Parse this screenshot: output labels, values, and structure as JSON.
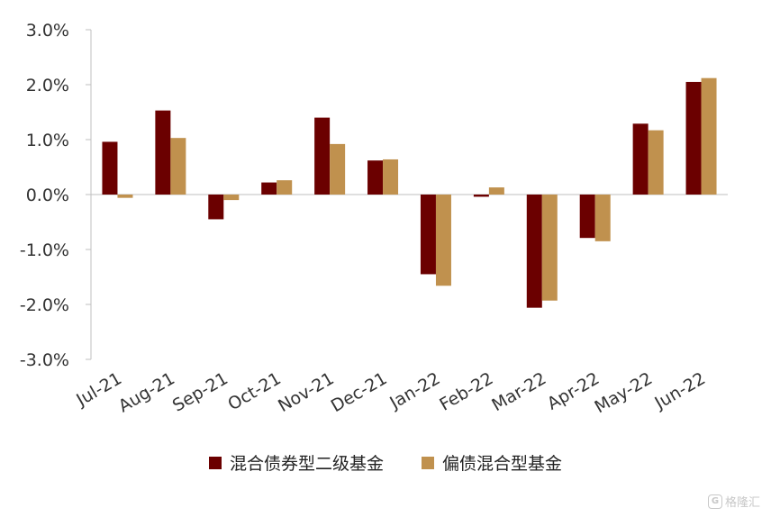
{
  "chart_data": {
    "type": "bar",
    "categories": [
      "Jul-21",
      "Aug-21",
      "Sep-21",
      "Oct-21",
      "Nov-21",
      "Dec-21",
      "Jan-22",
      "Feb-22",
      "Mar-22",
      "Apr-22",
      "May-22",
      "Jun-22"
    ],
    "series": [
      {
        "name": "混合债券型二级基金",
        "color": "#6b0000",
        "values": [
          0.96,
          1.53,
          -0.45,
          0.22,
          1.4,
          0.62,
          -1.45,
          -0.04,
          -2.06,
          -0.79,
          1.29,
          2.05
        ]
      },
      {
        "name": "偏债混合型基金",
        "color": "#c0914e",
        "values": [
          -0.06,
          1.03,
          -0.1,
          0.26,
          0.92,
          0.64,
          -1.66,
          0.13,
          -1.93,
          -0.85,
          1.17,
          2.12
        ]
      }
    ],
    "ylim": [
      -3.0,
      3.0
    ],
    "yticks": [
      "3.0%",
      "2.0%",
      "1.0%",
      "0.0%",
      "-1.0%",
      "-2.0%",
      "-3.0%"
    ],
    "ytick_values": [
      3,
      2,
      1,
      0,
      -1,
      -2,
      -3
    ],
    "grid": false,
    "legend_position": "bottom"
  },
  "watermark": {
    "text": "格隆汇",
    "logo": "G"
  }
}
